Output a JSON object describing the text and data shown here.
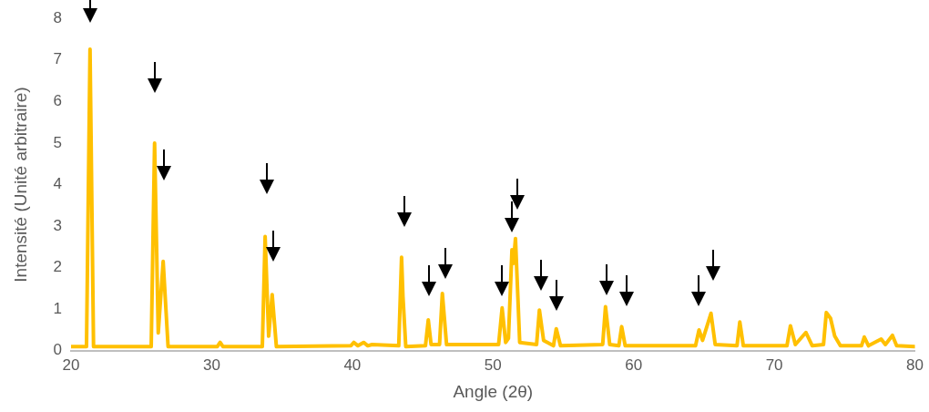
{
  "chart_data": {
    "type": "line",
    "xlabel": "Angle (2θ)",
    "ylabel": "Intensité (Unité arbitraire)",
    "xlim": [
      20,
      80
    ],
    "xticks": [
      20,
      30,
      40,
      50,
      60,
      70,
      80
    ],
    "ylim": [
      0,
      8
    ],
    "yticks": [
      0,
      1,
      2,
      3,
      4,
      5,
      6,
      7,
      8
    ],
    "grid": false,
    "legend": false,
    "marker": "none",
    "line_style": "solid",
    "series": [
      {
        "color": "#ffc000",
        "x": [
          20,
          21.1,
          21.35,
          21.6,
          25.7,
          25.94,
          26.2,
          26.55,
          26.9,
          30.4,
          30.6,
          30.8,
          33.6,
          33.8,
          34.05,
          34.3,
          34.6,
          39.9,
          40.1,
          40.4,
          40.8,
          41.1,
          41.4,
          43.3,
          43.5,
          43.6,
          43.8,
          45.2,
          45.4,
          45.6,
          46.2,
          46.4,
          46.7,
          50.4,
          50.65,
          50.9,
          51.1,
          51.35,
          51.45,
          51.6,
          51.9,
          53.1,
          53.3,
          53.6,
          54.3,
          54.5,
          54.8,
          57.8,
          58.0,
          58.3,
          58.95,
          59.15,
          59.4,
          64.4,
          64.65,
          64.9,
          65.5,
          65.8,
          67.35,
          67.55,
          67.8,
          70.9,
          71.15,
          71.5,
          72.25,
          72.7,
          73.5,
          73.7,
          74.0,
          74.3,
          74.7,
          76.2,
          76.4,
          76.7,
          77.6,
          77.9,
          78.4,
          78.7,
          80
        ],
        "values": [
          0.1,
          0.1,
          7.26,
          0.1,
          0.1,
          5.0,
          0.43,
          2.15,
          0.1,
          0.1,
          0.2,
          0.1,
          0.1,
          2.75,
          0.35,
          1.35,
          0.1,
          0.12,
          0.2,
          0.12,
          0.2,
          0.12,
          0.15,
          0.12,
          2.25,
          1.3,
          0.1,
          0.12,
          0.74,
          0.15,
          0.15,
          1.38,
          0.15,
          0.15,
          1.03,
          0.2,
          0.3,
          2.43,
          2.1,
          2.7,
          0.2,
          0.15,
          0.98,
          0.25,
          0.12,
          0.53,
          0.12,
          0.15,
          1.06,
          0.15,
          0.12,
          0.58,
          0.12,
          0.12,
          0.5,
          0.25,
          0.9,
          0.15,
          0.12,
          0.69,
          0.12,
          0.12,
          0.6,
          0.15,
          0.44,
          0.12,
          0.15,
          0.92,
          0.78,
          0.35,
          0.12,
          0.12,
          0.33,
          0.12,
          0.28,
          0.15,
          0.37,
          0.12,
          0.1
        ]
      }
    ]
  }
}
